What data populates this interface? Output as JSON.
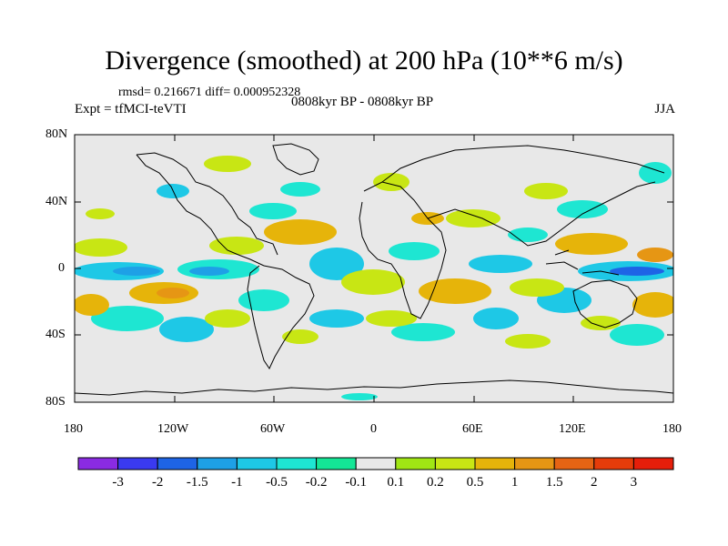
{
  "header": {
    "title": "Divergence (smoothed) at 200 hPa (10**6 m/s)",
    "stats": "rmsd= 0.216671 diff= 0.000952328",
    "period": "0808kyr BP - 0808kyr BP",
    "experiment": "Expt = tfMCI-teVTI",
    "season": "JJA"
  },
  "axes": {
    "y_ticks": [
      "80N",
      "40N",
      "0",
      "40S",
      "80S"
    ],
    "x_ticks": [
      "180",
      "120W",
      "60W",
      "0",
      "60E",
      "120E",
      "180"
    ]
  },
  "colorbar": {
    "labels": [
      "-3",
      "-2",
      "-1.5",
      "-1",
      "-0.5",
      "-0.2",
      "-0.1",
      "0.1",
      "0.2",
      "0.5",
      "1",
      "1.5",
      "2",
      "3"
    ],
    "colors": [
      "#8a2be2",
      "#3a3af0",
      "#1e64e6",
      "#1ea0e6",
      "#1ec8e6",
      "#1ee6d2",
      "#14e696",
      "#e8e8e8",
      "#a0e614",
      "#c8e614",
      "#e6b40a",
      "#e69614",
      "#e66414",
      "#e63c0a",
      "#e61e0a"
    ]
  },
  "colors": {
    "background": "#e8e8e8",
    "coast": "#000000"
  }
}
